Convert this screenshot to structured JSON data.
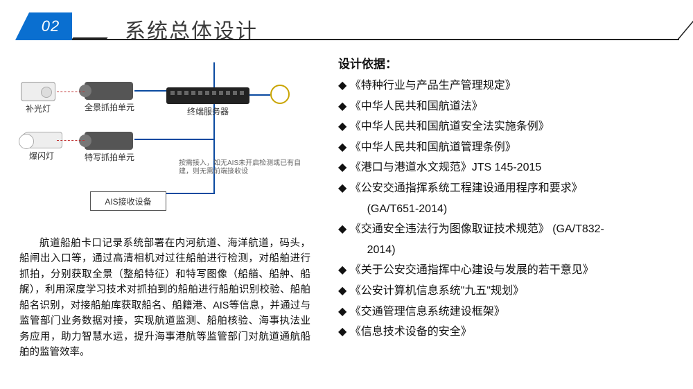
{
  "header": {
    "num": "02",
    "title": "系统总体设计"
  },
  "diagram": {
    "dev_fill_light": "补光灯",
    "dev_flash": "爆闪灯",
    "dev_pano": "全景抓拍单元",
    "dev_closeup": "特写抓拍单元",
    "dev_server": "终端服务器",
    "dev_ais": "AIS接收设备",
    "note": "按需接入，如无AIS未开启检测或已有自建，则无需前端接收设",
    "colors": {
      "blue_line": "#0a4aa0",
      "red_line": "#c03030",
      "coil": "#c9a400"
    }
  },
  "body_text": "航道船舶卡口记录系统部署在内河航道、海洋航道，码头，船闸出入口等，通过高清相机对过往船舶进行检测，对船舶进行抓拍，分别获取全景（整船特征）和特写图像（船艏、船舯、船艉），利用深度学习技术对抓拍到的船舶进行船舶识别校验、船舶船名识别，对接船舶库获取船名、船籍港、AIS等信息，并通过与监管部门业务数据对接，实现航道监测、船舶核验、海事执法业务应用，助力智慧水运，提升海事港航等监管部门对航道通航船舶的监管效率。",
  "right": {
    "title": "设计依据：",
    "items": [
      {
        "t": "《特种行业与产品生产管理规定》"
      },
      {
        "t": "《中华人民共和国航道法》"
      },
      {
        "t": "《中华人民共和国航道安全法实施条例》"
      },
      {
        "t": "《中华人民共和国航道管理条例》"
      },
      {
        "t": "《港口与港道水文规范》JTS 145-2015"
      },
      {
        "t": "《公安交通指挥系统工程建设通用程序和要求》",
        "extra": "(GA/T651-2014)"
      },
      {
        "t": "《交通安全违法行为图像取证技术规范》 (GA/T832-",
        "extra": "2014)"
      },
      {
        "t": "《关于公安交通指挥中心建设与发展的若干意见》"
      },
      {
        "t": "《公安计算机信息系统\"九五\"规划》"
      },
      {
        "t": "《交通管理信息系统建设框架》"
      },
      {
        "t": "《信息技术设备的安全》"
      }
    ],
    "bullet": "◆"
  }
}
